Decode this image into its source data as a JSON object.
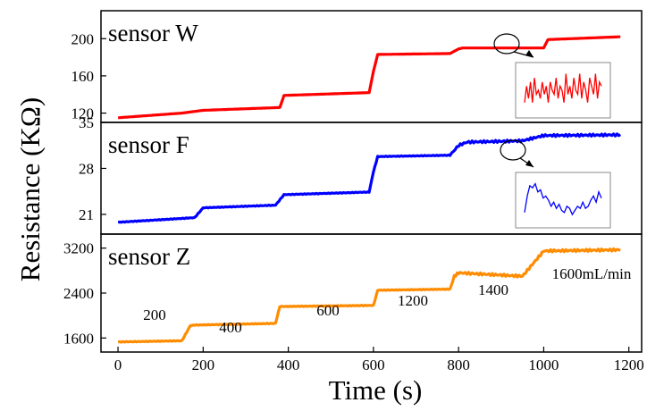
{
  "xlabel": "Time (s)",
  "ylabel": "Resistance (KΩ)",
  "xticks": [
    0,
    200,
    400,
    600,
    800,
    1000,
    1200
  ],
  "chart_data": [
    {
      "type": "line",
      "label": "sensor W",
      "color": "#ff0000",
      "ylim": [
        110,
        230
      ],
      "yticks": [
        120,
        160,
        200
      ],
      "x": [
        0,
        150,
        200,
        380,
        390,
        590,
        600,
        610,
        780,
        800,
        810,
        1000,
        1010,
        1180
      ],
      "y": [
        115,
        120,
        123,
        126,
        139,
        142,
        165,
        183,
        184,
        189,
        190,
        190,
        199,
        202
      ],
      "inset": {
        "x": [
          0,
          1,
          2,
          3,
          4,
          5,
          6,
          7,
          8,
          9,
          10,
          11,
          12,
          13,
          14,
          15,
          16,
          17,
          18,
          19,
          20,
          21,
          22,
          23,
          24,
          25,
          26,
          27,
          28,
          29,
          30,
          31,
          32,
          33,
          34,
          35,
          36,
          37,
          38,
          39
        ],
        "y": [
          0.2,
          0.6,
          0.3,
          0.7,
          0.2,
          0.8,
          0.4,
          0.5,
          0.3,
          0.7,
          0.4,
          0.6,
          0.2,
          0.7,
          0.5,
          0.4,
          0.8,
          0.3,
          0.6,
          0.5,
          0.2,
          0.9,
          0.4,
          0.6,
          0.3,
          0.8,
          0.5,
          0.4,
          0.9,
          0.3,
          0.7,
          0.5,
          0.2,
          0.8,
          0.6,
          0.4,
          0.9,
          0.3,
          0.7,
          0.6
        ]
      }
    },
    {
      "type": "line",
      "label": "sensor F",
      "color": "#0000ff",
      "ylim": [
        18,
        35
      ],
      "yticks": [
        21,
        28,
        35
      ],
      "x": [
        0,
        180,
        200,
        370,
        390,
        590,
        600,
        610,
        780,
        800,
        820,
        950,
        1000,
        1180
      ],
      "y": [
        19.8,
        20.5,
        22.0,
        22.4,
        24.0,
        24.4,
        27.5,
        29.8,
        30.0,
        31.5,
        32.0,
        32.2,
        33.0,
        33.1
      ],
      "inset": {
        "x": [
          0,
          1,
          2,
          3,
          4,
          5,
          6,
          7,
          8,
          9,
          10,
          11,
          12,
          13,
          14,
          15,
          16,
          17,
          18,
          19,
          20,
          21,
          22,
          23,
          24,
          25,
          26,
          27,
          28,
          29
        ],
        "y": [
          0.2,
          0.6,
          0.85,
          0.8,
          0.9,
          0.7,
          0.75,
          0.55,
          0.6,
          0.5,
          0.35,
          0.45,
          0.3,
          0.4,
          0.25,
          0.2,
          0.35,
          0.3,
          0.15,
          0.25,
          0.35,
          0.3,
          0.45,
          0.3,
          0.35,
          0.5,
          0.6,
          0.45,
          0.7,
          0.55
        ]
      }
    },
    {
      "type": "line",
      "label": "sensor Z",
      "color": "#ff8c00",
      "ylim": [
        1350,
        3450
      ],
      "yticks": [
        1600,
        2400,
        3200
      ],
      "x": [
        0,
        150,
        170,
        180,
        370,
        380,
        600,
        610,
        780,
        790,
        800,
        950,
        1000,
        1180
      ],
      "y": [
        1530,
        1550,
        1820,
        1830,
        1860,
        2160,
        2180,
        2450,
        2470,
        2700,
        2760,
        2700,
        3150,
        3170
      ],
      "annotations": [
        "200",
        "400",
        "600",
        "1200",
        "1400",
        "1600mL/min"
      ]
    }
  ]
}
